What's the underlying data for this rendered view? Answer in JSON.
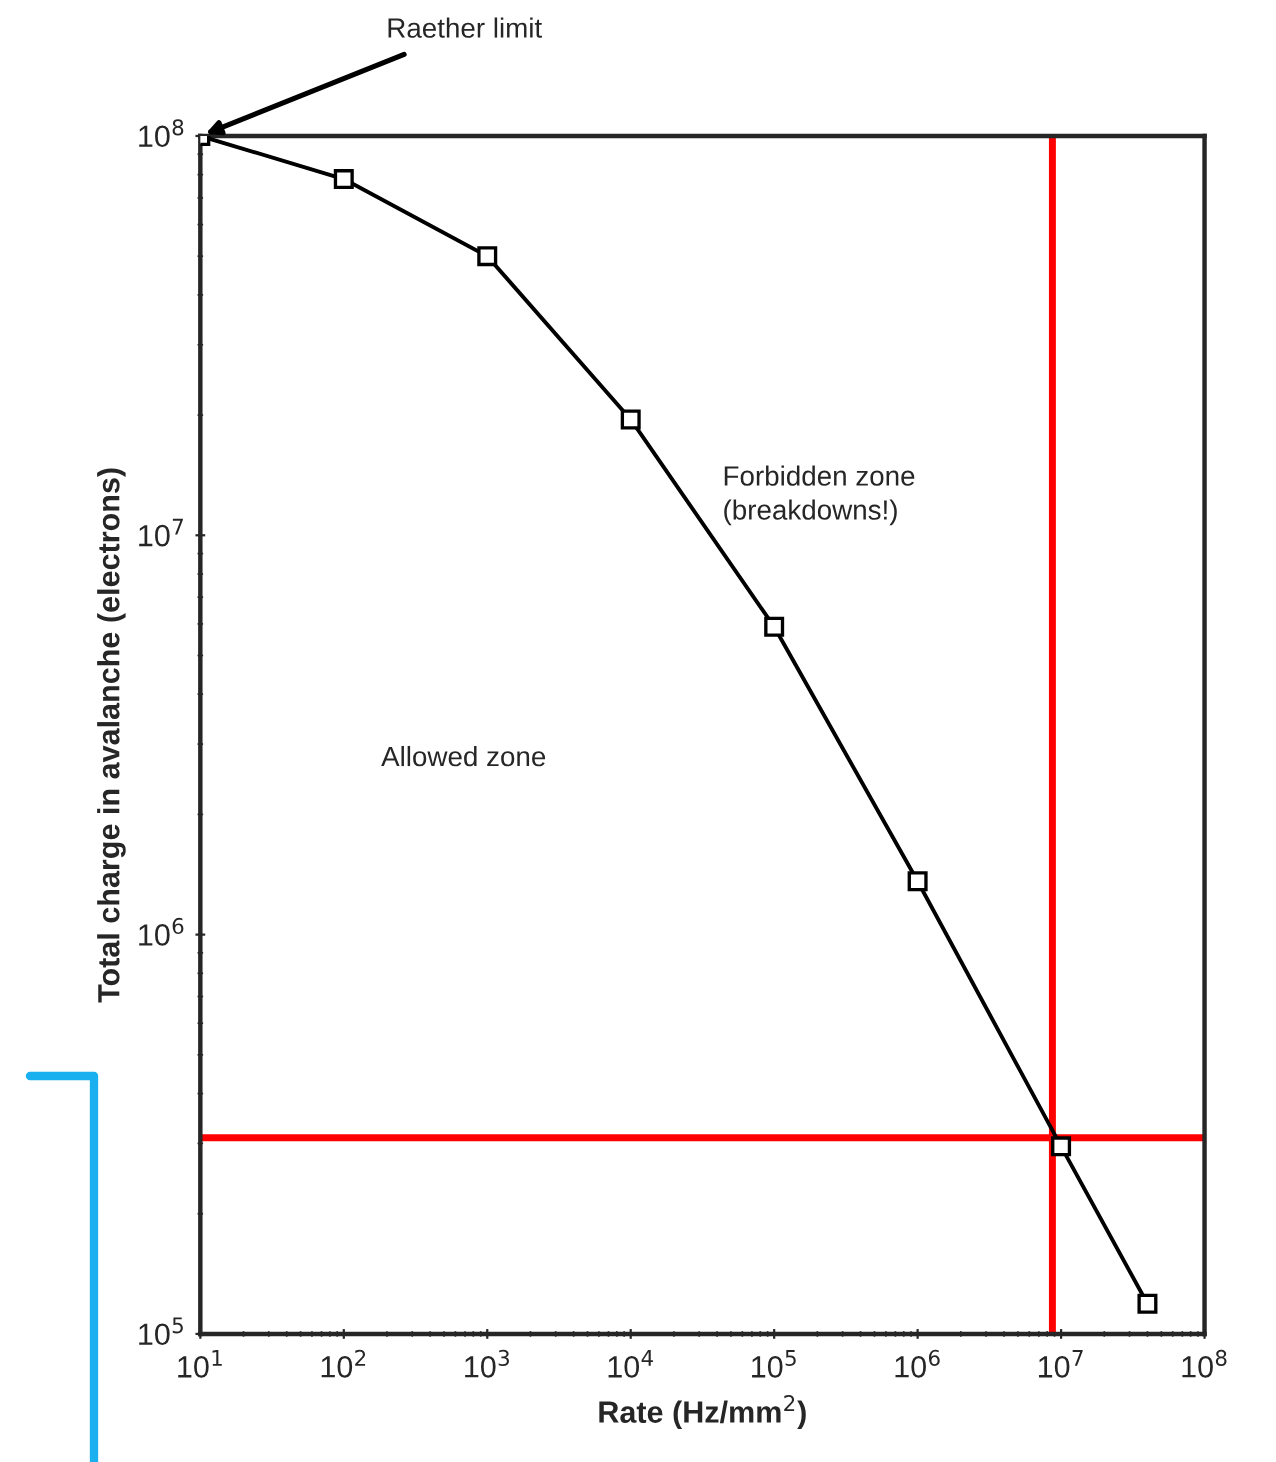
{
  "chart_data": {
    "type": "line",
    "xlabel": "Rate (Hz/mm$^{2}$)",
    "ylabel": "Total charge in avalanche (electrons)",
    "x": [
      10,
      100,
      1000,
      10000,
      100000,
      1000000,
      10000000,
      40000000
    ],
    "series": [
      {
        "color": "#000000",
        "values": [
          100000000,
          78000000,
          50000000,
          19500000,
          5900000,
          1360000,
          295000,
          119000
        ]
      }
    ],
    "marker": "square",
    "log": "xy",
    "xlim": [
      10,
      100000000
    ],
    "ylim": [
      100000,
      100000000
    ],
    "xticks": [
      {
        "value": 10,
        "label": "10$^{1}$"
      },
      {
        "value": 100,
        "label": "10$^{2}$"
      },
      {
        "value": 1000,
        "label": "10$^{3}$"
      },
      {
        "value": 10000,
        "label": "10$^{4}$"
      },
      {
        "value": 100000,
        "label": "10$^{5}$"
      },
      {
        "value": 1000000,
        "label": "10$^{6}$"
      },
      {
        "value": 10000000,
        "label": "10$^{7}$"
      },
      {
        "value": 100000000,
        "label": "10$^{8}$"
      }
    ],
    "yticks": [
      {
        "value": 100000,
        "label": "10$^{5}$"
      },
      {
        "value": 1000000,
        "label": "10$^{6}$"
      },
      {
        "value": 10000000,
        "label": "10$^{7}$"
      },
      {
        "value": 100000000,
        "label": "10$^{8}$"
      }
    ],
    "ref_lines": [
      {
        "axis": "y",
        "value": 310000,
        "color": "#ff0000"
      },
      {
        "axis": "x",
        "value": 8700000,
        "color": "#ff0000"
      }
    ],
    "annotations": [
      {
        "text": "Raether limit",
        "x": 10,
        "y": 100000000
      },
      "Forbidden zone\n(breakdowns!)",
      "Allowed zone"
    ],
    "grid": false,
    "legend": false
  }
}
